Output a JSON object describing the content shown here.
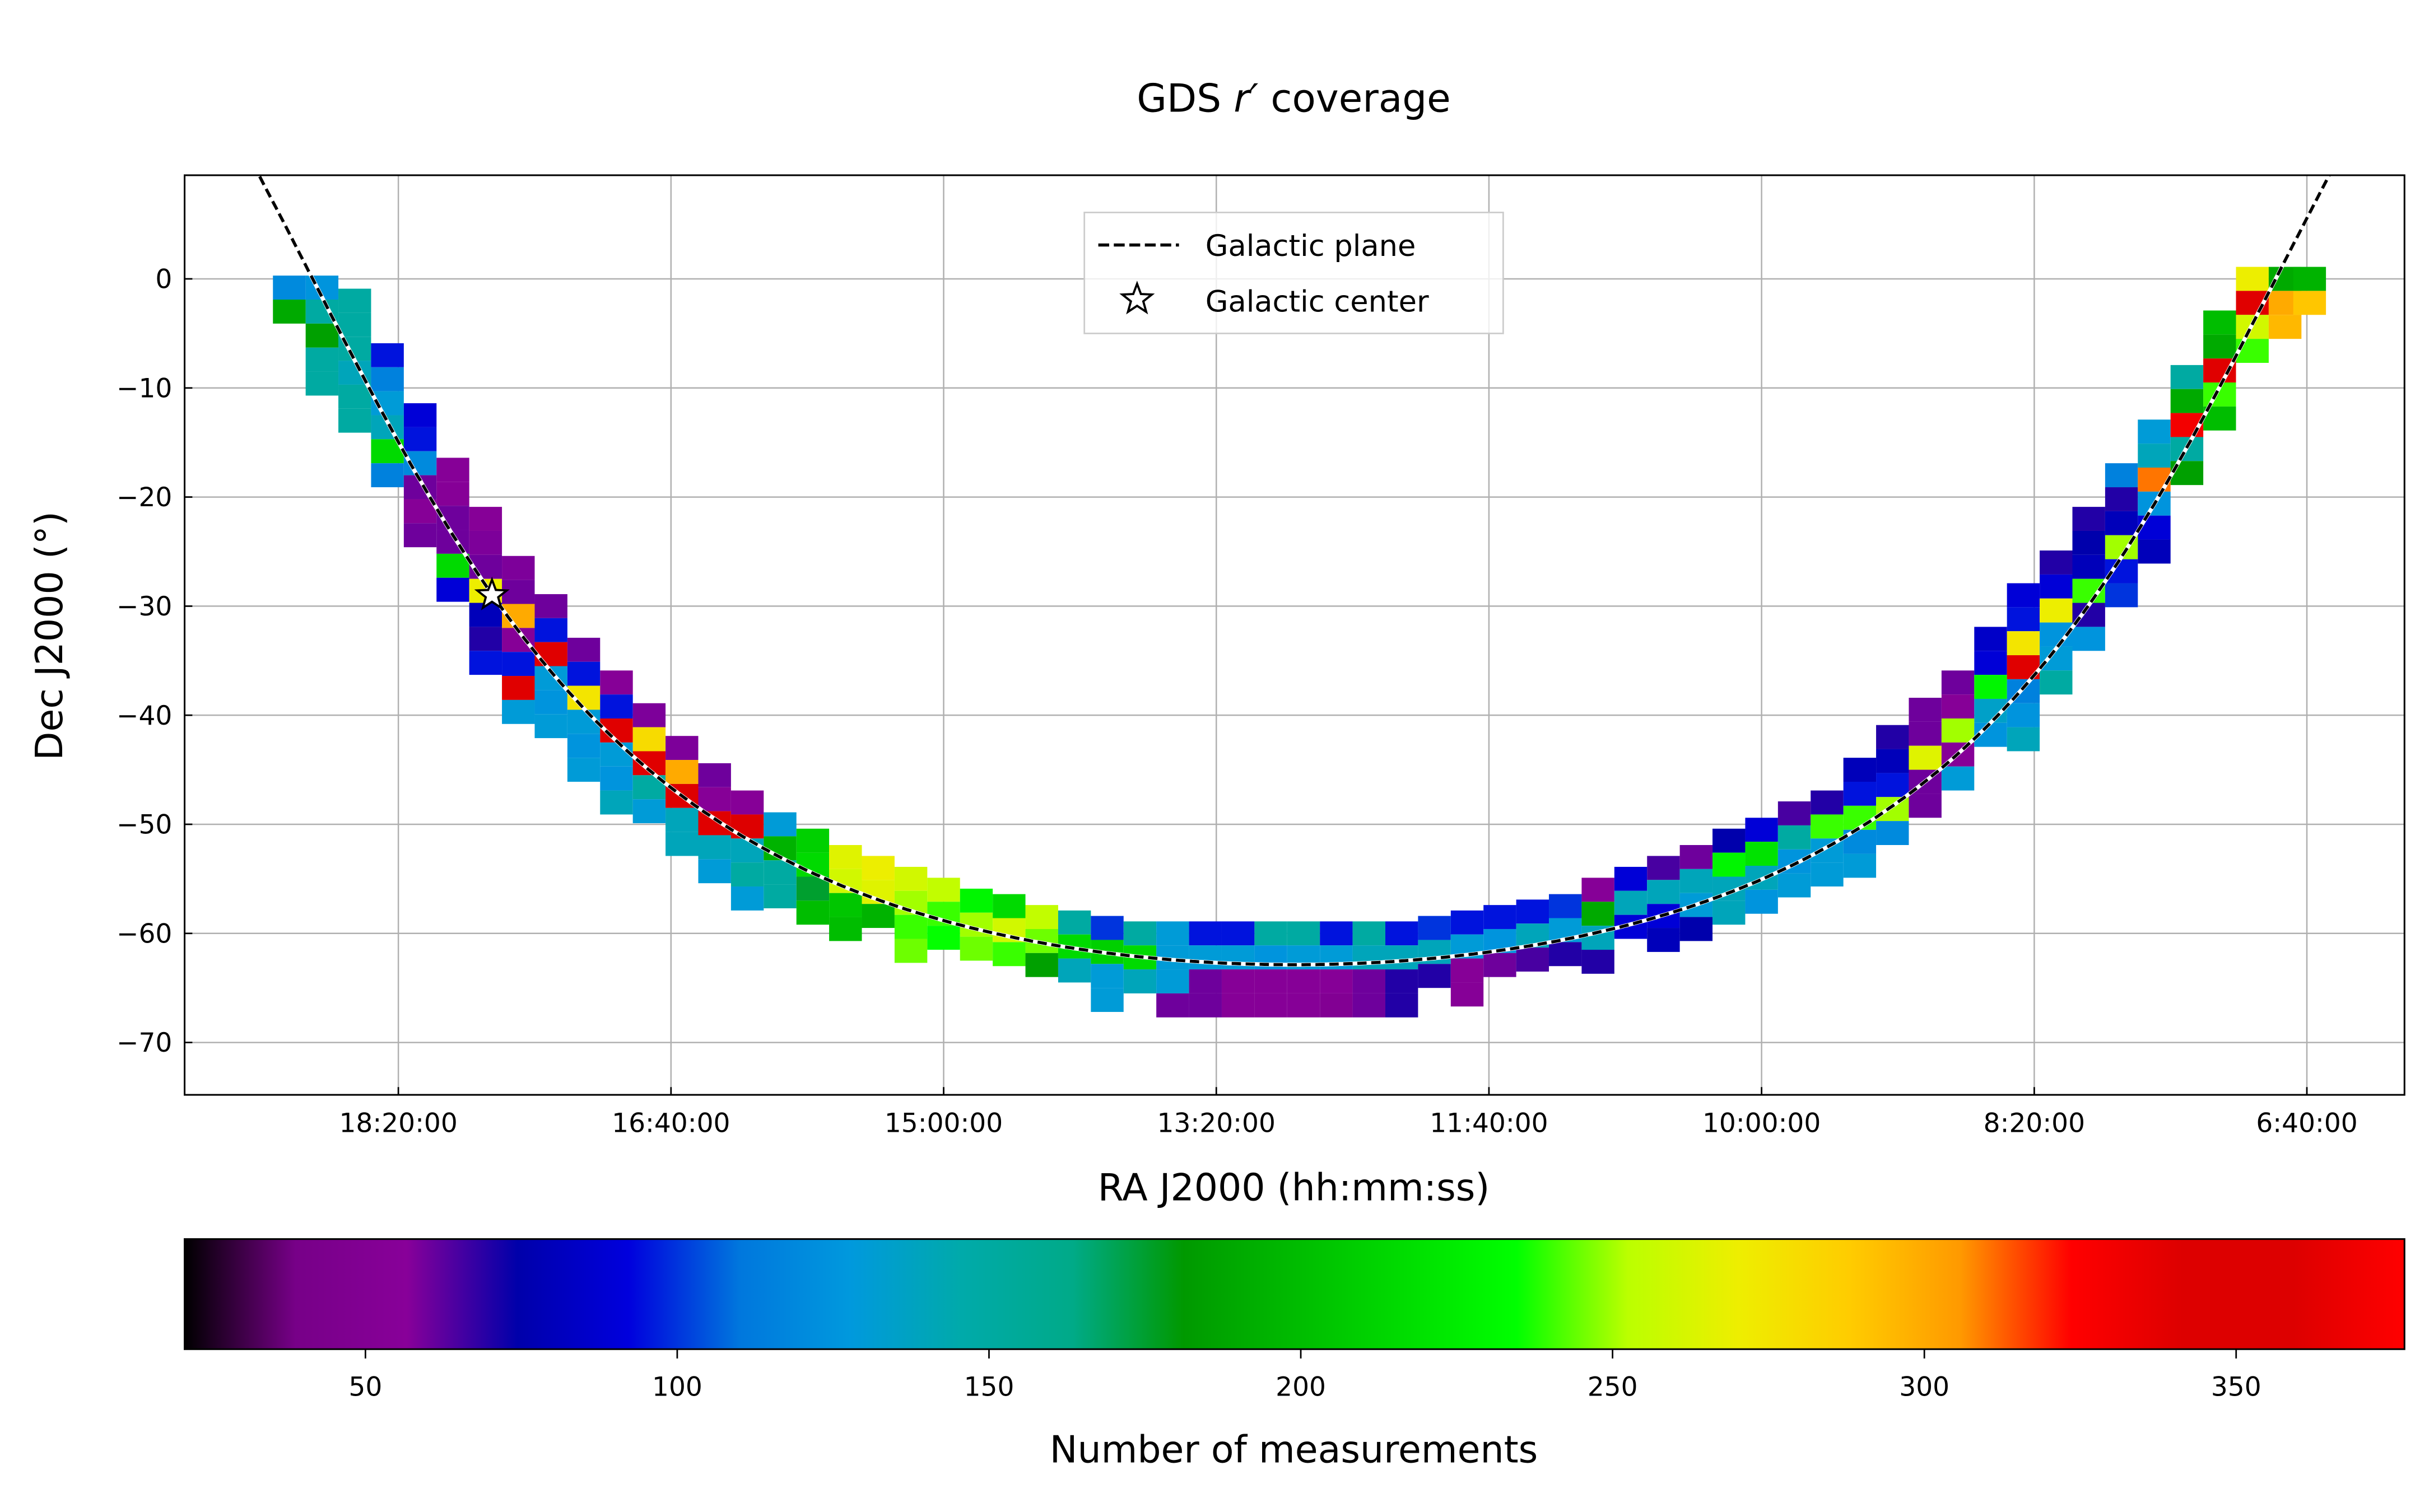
{
  "chart_data": {
    "type": "heatmap",
    "title": {
      "prefix": "GDS",
      "band": "r′",
      "suffix": "coverage"
    },
    "xlabel": "RA J2000 (hh:mm:ss)",
    "ylabel": "Dec J2000 (°)",
    "xlim_ra_hours": [
      19.64,
      6.07
    ],
    "ylim_dec_deg": [
      -74.8,
      9.5
    ],
    "grid": true,
    "xticks": [
      {
        "label": "18:20:00",
        "ra_hours": 18.3333
      },
      {
        "label": "16:40:00",
        "ra_hours": 16.6667
      },
      {
        "label": "15:00:00",
        "ra_hours": 15.0
      },
      {
        "label": "13:20:00",
        "ra_hours": 13.3333
      },
      {
        "label": "11:40:00",
        "ra_hours": 11.6667
      },
      {
        "label": "10:00:00",
        "ra_hours": 10.0
      },
      {
        "label": "8:20:00",
        "ra_hours": 8.3333
      },
      {
        "label": "6:40:00",
        "ra_hours": 6.6667
      }
    ],
    "yticks": [
      {
        "label": "0",
        "dec": 0
      },
      {
        "label": "−10",
        "dec": -10
      },
      {
        "label": "−20",
        "dec": -20
      },
      {
        "label": "−30",
        "dec": -30
      },
      {
        "label": "−40",
        "dec": -40
      },
      {
        "label": "−50",
        "dec": -50
      },
      {
        "label": "−60",
        "dec": -60
      },
      {
        "label": "−70",
        "dec": -70
      }
    ],
    "legend": {
      "placement": "top-center",
      "entries": [
        {
          "label": "Galactic plane",
          "marker": "dashed-line"
        },
        {
          "label": "Galactic center",
          "marker": "star"
        }
      ]
    },
    "galactic_center": {
      "ra_hours": 17.761,
      "dec": -29.0
    },
    "colorbar": {
      "label": "Number of measurements",
      "colormap": "nipy_spectral",
      "range": [
        21,
        377
      ],
      "ticks": [
        {
          "label": "50",
          "value": 50
        },
        {
          "label": "100",
          "value": 100
        },
        {
          "label": "150",
          "value": 150
        },
        {
          "label": "200",
          "value": 200
        },
        {
          "label": "250",
          "value": 250
        },
        {
          "label": "300",
          "value": 300
        },
        {
          "label": "350",
          "value": 350
        }
      ]
    },
    "tile_columns": [
      {
        "ra": 19.0,
        "top": -0.8,
        "n": [
          120,
          190
        ]
      },
      {
        "ra": 18.8,
        "top": -0.8,
        "n": [
          125,
          150,
          185,
          150,
          150
        ]
      },
      {
        "ra": 18.6,
        "top": -2,
        "n": [
          150,
          150,
          150,
          140,
          150,
          150
        ]
      },
      {
        "ra": 18.4,
        "top": -7,
        "n": [
          95,
          115,
          130,
          140,
          215,
          115
        ]
      },
      {
        "ra": 18.2,
        "top": -12.5,
        "n": [
          90,
          95,
          120,
          60,
          55,
          60
        ]
      },
      {
        "ra": 18.0,
        "top": -17.5,
        "n": [
          55,
          55,
          60,
          60,
          215,
          90
        ]
      },
      {
        "ra": 17.8,
        "top": -22,
        "n": [
          55,
          58,
          60,
          270,
          80,
          70,
          95
        ]
      },
      {
        "ra": 17.6,
        "top": -26.5,
        "n": [
          58,
          60,
          300,
          55,
          95,
          340,
          130
        ]
      },
      {
        "ra": 17.4,
        "top": -30,
        "n": [
          60,
          95,
          340,
          130,
          125,
          130
        ]
      },
      {
        "ra": 17.2,
        "top": -34,
        "n": [
          60,
          95,
          275,
          130,
          125,
          130
        ]
      },
      {
        "ra": 17.0,
        "top": -37,
        "n": [
          55,
          95,
          340,
          130,
          125,
          140
        ]
      },
      {
        "ra": 16.8,
        "top": -40,
        "n": [
          58,
          280,
          340,
          150,
          130
        ]
      },
      {
        "ra": 16.6,
        "top": -43,
        "n": [
          58,
          300,
          345,
          140,
          140
        ]
      },
      {
        "ra": 16.4,
        "top": -45.5,
        "n": [
          60,
          55,
          340,
          140,
          130
        ]
      },
      {
        "ra": 16.2,
        "top": -48,
        "n": [
          55,
          345,
          140,
          150,
          130
        ]
      },
      {
        "ra": 16.0,
        "top": -50,
        "n": [
          130,
          195,
          150,
          150
        ]
      },
      {
        "ra": 15.8,
        "top": -51.5,
        "n": [
          210,
          215,
          175,
          200
        ]
      },
      {
        "ra": 15.6,
        "top": -53,
        "n": [
          265,
          260,
          205,
          200
        ]
      },
      {
        "ra": 15.4,
        "top": -54,
        "n": [
          270,
          265,
          195
        ]
      },
      {
        "ra": 15.2,
        "top": -55,
        "n": [
          260,
          250,
          240,
          245
        ]
      },
      {
        "ra": 15.0,
        "top": -56,
        "n": [
          255,
          240,
          235
        ]
      },
      {
        "ra": 14.8,
        "top": -57,
        "n": [
          230,
          250,
          245
        ]
      },
      {
        "ra": 14.6,
        "top": -57.5,
        "n": [
          215,
          260,
          240
        ]
      },
      {
        "ra": 14.4,
        "top": -58.5,
        "n": [
          255,
          245,
          185
        ]
      },
      {
        "ra": 14.2,
        "top": -59,
        "n": [
          150,
          215,
          140
        ]
      },
      {
        "ra": 14.0,
        "top": -59.5,
        "n": [
          100,
          210,
          130,
          130
        ]
      },
      {
        "ra": 13.8,
        "top": -60,
        "n": [
          150,
          215,
          140
        ]
      },
      {
        "ra": 13.6,
        "top": -60,
        "n": [
          130,
          130,
          130,
          60
        ]
      },
      {
        "ra": 13.4,
        "top": -60,
        "n": [
          95,
          130,
          60,
          60
        ]
      },
      {
        "ra": 13.2,
        "top": -60,
        "n": [
          95,
          130,
          55,
          55
        ]
      },
      {
        "ra": 13.0,
        "top": -60,
        "n": [
          150,
          125,
          55,
          55
        ]
      },
      {
        "ra": 12.8,
        "top": -60,
        "n": [
          150,
          130,
          55,
          55
        ]
      },
      {
        "ra": 12.6,
        "top": -60,
        "n": [
          95,
          130,
          55,
          50
        ]
      },
      {
        "ra": 12.4,
        "top": -60,
        "n": [
          150,
          140,
          60,
          60
        ]
      },
      {
        "ra": 12.2,
        "top": -60,
        "n": [
          95,
          140,
          70,
          70
        ]
      },
      {
        "ra": 12.0,
        "top": -59.5,
        "n": [
          100,
          140,
          70
        ]
      },
      {
        "ra": 11.8,
        "top": -59,
        "n": [
          95,
          130,
          55,
          55
        ]
      },
      {
        "ra": 11.6,
        "top": -58.5,
        "n": [
          95,
          125,
          60
        ]
      },
      {
        "ra": 11.4,
        "top": -58,
        "n": [
          95,
          140,
          65
        ]
      },
      {
        "ra": 11.2,
        "top": -57.5,
        "n": [
          100,
          130,
          70
        ]
      },
      {
        "ra": 11.0,
        "top": -56,
        "n": [
          55,
          190,
          140,
          70
        ]
      },
      {
        "ra": 10.8,
        "top": -55,
        "n": [
          90,
          140,
          90
        ]
      },
      {
        "ra": 10.6,
        "top": -54,
        "n": [
          65,
          140,
          90,
          80
        ]
      },
      {
        "ra": 10.4,
        "top": -53,
        "n": [
          60,
          140,
          130,
          75
        ]
      },
      {
        "ra": 10.2,
        "top": -51.5,
        "n": [
          75,
          230,
          140,
          140
        ]
      },
      {
        "ra": 10.0,
        "top": -50.5,
        "n": [
          90,
          220,
          140,
          125
        ]
      },
      {
        "ra": 9.8,
        "top": -49,
        "n": [
          65,
          150,
          125,
          130
        ]
      },
      {
        "ra": 9.6,
        "top": -48,
        "n": [
          70,
          240,
          130,
          130
        ]
      },
      {
        "ra": 9.4,
        "top": -45,
        "n": [
          80,
          95,
          240,
          120,
          130
        ]
      },
      {
        "ra": 9.2,
        "top": -42,
        "n": [
          70,
          80,
          95,
          250,
          120
        ]
      },
      {
        "ra": 9.0,
        "top": -39.5,
        "n": [
          60,
          60,
          265,
          60,
          60
        ]
      },
      {
        "ra": 8.8,
        "top": -37,
        "n": [
          60,
          55,
          250,
          55,
          130
        ]
      },
      {
        "ra": 8.6,
        "top": -33,
        "n": [
          85,
          90,
          230,
          135,
          125
        ]
      },
      {
        "ra": 8.4,
        "top": -29,
        "n": [
          90,
          95,
          275,
          340,
          115,
          125,
          140
        ]
      },
      {
        "ra": 8.2,
        "top": -26,
        "n": [
          70,
          90,
          270,
          125,
          130,
          150
        ]
      },
      {
        "ra": 8.0,
        "top": -22,
        "n": [
          70,
          75,
          80,
          240,
          70,
          125
        ]
      },
      {
        "ra": 7.8,
        "top": -18,
        "n": [
          115,
          70,
          80,
          250,
          95,
          100
        ]
      },
      {
        "ra": 7.6,
        "top": -14,
        "n": [
          130,
          140,
          310,
          125,
          90,
          80
        ]
      },
      {
        "ra": 7.4,
        "top": -9,
        "n": [
          150,
          190,
          330,
          150,
          185
        ]
      },
      {
        "ra": 7.2,
        "top": -4,
        "n": [
          200,
          190,
          340,
          240,
          200
        ]
      },
      {
        "ra": 7.0,
        "top": 0,
        "n": [
          270,
          340,
          260,
          240
        ]
      },
      {
        "ra": 6.8,
        "top": 0,
        "n": [
          190,
          300,
          295
        ]
      },
      {
        "ra": 6.65,
        "top": 0,
        "n": [
          195,
          290
        ]
      }
    ]
  }
}
